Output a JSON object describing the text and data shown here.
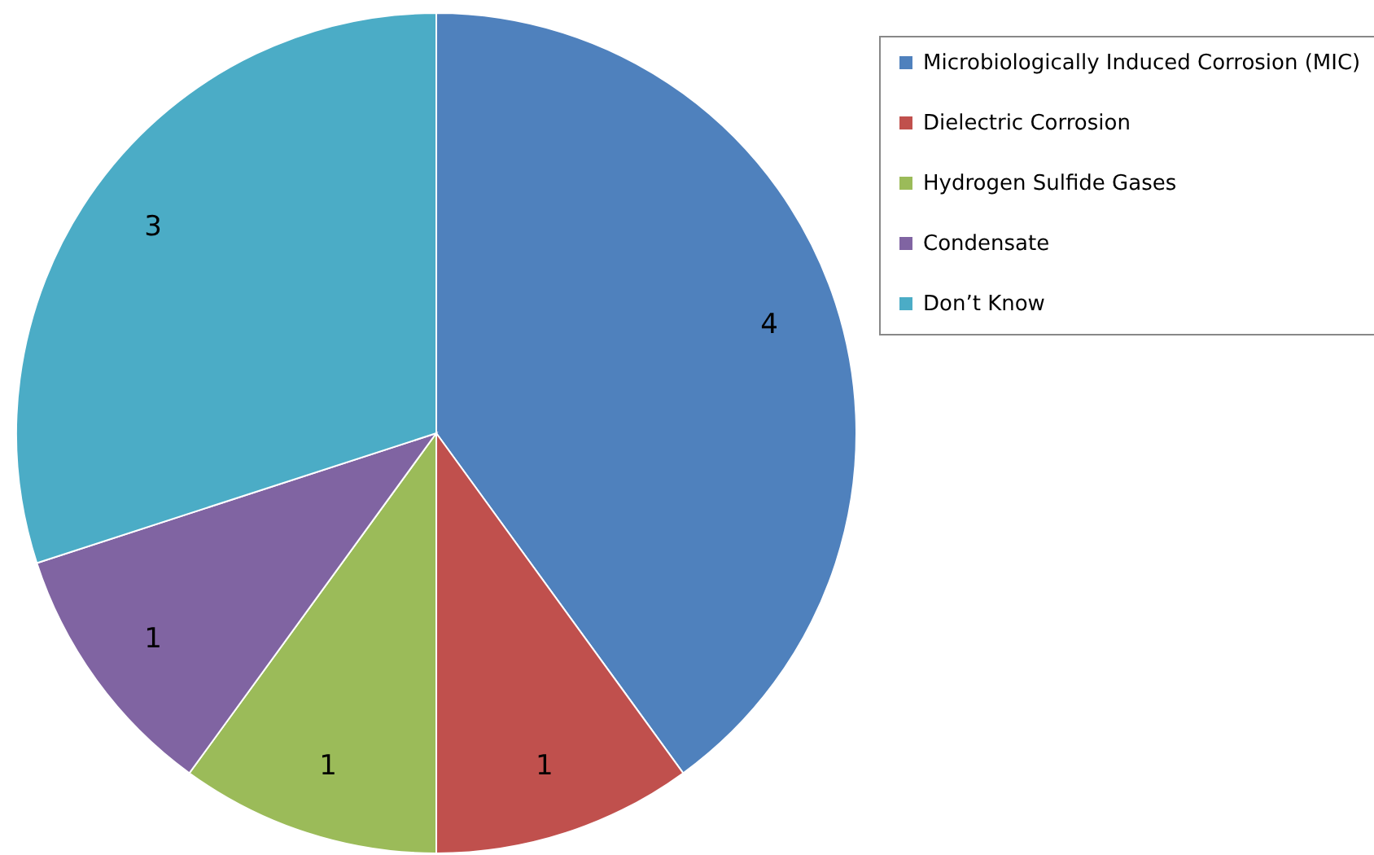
{
  "chart_data": {
    "type": "pie",
    "categories": [
      "Microbiologically Induced Corrosion (MIC)",
      "Dielectric Corrosion",
      "Hydrogen Sulfide Gases",
      "Condensate",
      "Don’t Know"
    ],
    "values": [
      4,
      1,
      1,
      1,
      3
    ],
    "colors": [
      "#4f81bd",
      "#c0504d",
      "#9bbb59",
      "#8064a2",
      "#4bacc6"
    ],
    "data_labels": true,
    "legend": "top right"
  }
}
